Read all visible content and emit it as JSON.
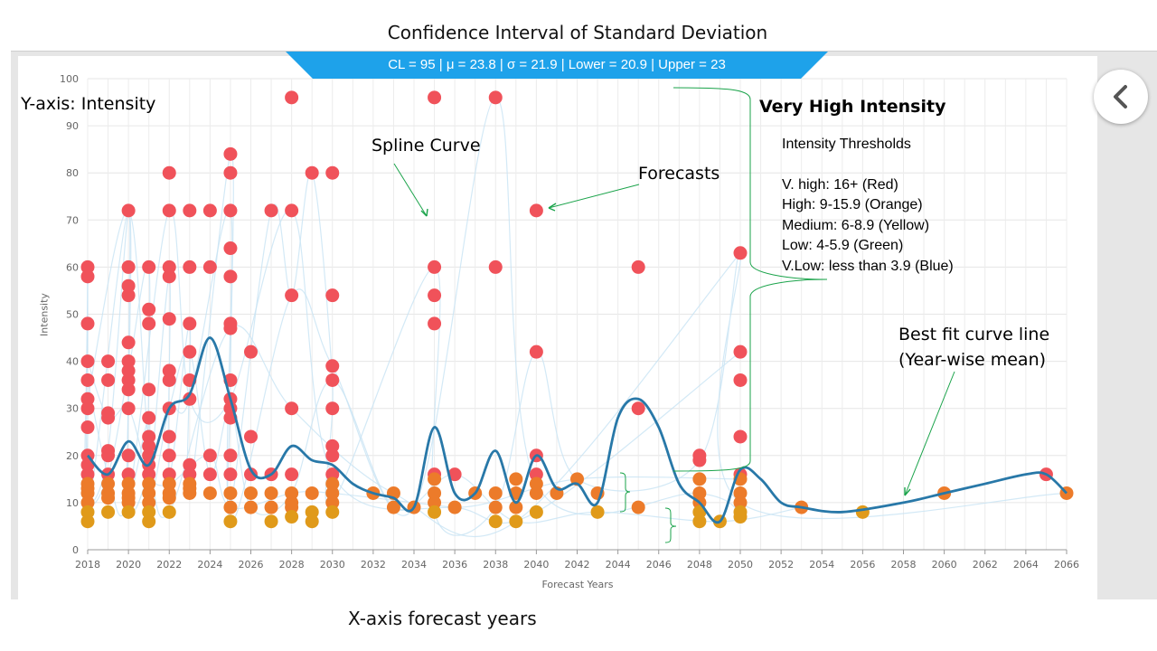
{
  "page": {
    "title": "Confidence Interval of Standard Deviation",
    "stats_banner": "CL = 95 | μ = 23.8 | σ = 21.9 | Lower = 20.9 | Upper = 23",
    "bottom_label": "X-axis forecast years"
  },
  "colors": {
    "banner": "#1ea2ea",
    "very_high": "#f0525a",
    "high": "#ec7b2a",
    "medium": "#e09a1a",
    "best_fit": "#2878a8",
    "spline": "#c8e4f4",
    "annotation_arrow": "#1aa34a"
  },
  "annotations": {
    "y_axis": "Y-axis: Intensity",
    "spline": "Spline Curve",
    "forecasts": "Forecasts",
    "very_high": "Very High Intensity",
    "thresholds_title": "Intensity Thresholds",
    "thresholds": [
      "V. high:  16+ (Red)",
      "High:  9-15.9 (Orange)",
      "Medium: 6-8.9 (Yellow)",
      "Low: 4-5.9 (Green)",
      "V.Low: less than 3.9 (Blue)"
    ],
    "best_fit_line1": "Best fit curve line",
    "best_fit_line2": "(Year-wise mean)"
  },
  "side_button": {
    "icon": "chevron-left-icon"
  },
  "chart_data": {
    "type": "scatter",
    "xlabel": "Forecast Years",
    "ylabel": "Intensity",
    "xlim": [
      2018,
      2066
    ],
    "ylim": [
      0,
      100
    ],
    "xticks": [
      "2018",
      "2020",
      "2022",
      "2024",
      "2026",
      "2028",
      "2030",
      "2032",
      "2034",
      "2036",
      "2038",
      "2040",
      "2042",
      "2044",
      "2046",
      "2048",
      "2050",
      "2052",
      "2054",
      "2056",
      "2058",
      "2060",
      "2062",
      "2064",
      "2066"
    ],
    "yticks": [
      "0",
      "10",
      "20",
      "30",
      "40",
      "50",
      "60",
      "70",
      "80",
      "90",
      "100"
    ],
    "grid": true,
    "points": [
      [
        2018,
        60
      ],
      [
        2018,
        58
      ],
      [
        2018,
        48
      ],
      [
        2018,
        40
      ],
      [
        2018,
        36
      ],
      [
        2018,
        32
      ],
      [
        2018,
        30
      ],
      [
        2018,
        26
      ],
      [
        2018,
        20
      ],
      [
        2018,
        18
      ],
      [
        2018,
        16
      ],
      [
        2018,
        14
      ],
      [
        2018,
        13
      ],
      [
        2018,
        12
      ],
      [
        2018,
        10
      ],
      [
        2018,
        8
      ],
      [
        2018,
        6
      ],
      [
        2019,
        40
      ],
      [
        2019,
        36
      ],
      [
        2019,
        29
      ],
      [
        2019,
        28
      ],
      [
        2019,
        21
      ],
      [
        2019,
        20
      ],
      [
        2019,
        16
      ],
      [
        2019,
        14
      ],
      [
        2019,
        12
      ],
      [
        2019,
        11
      ],
      [
        2019,
        8
      ],
      [
        2020,
        72
      ],
      [
        2020,
        60
      ],
      [
        2020,
        56
      ],
      [
        2020,
        54
      ],
      [
        2020,
        44
      ],
      [
        2020,
        40
      ],
      [
        2020,
        38
      ],
      [
        2020,
        36
      ],
      [
        2020,
        34
      ],
      [
        2020,
        30
      ],
      [
        2020,
        20
      ],
      [
        2020,
        16
      ],
      [
        2020,
        14
      ],
      [
        2020,
        12
      ],
      [
        2020,
        11
      ],
      [
        2020,
        10
      ],
      [
        2020,
        8
      ],
      [
        2021,
        60
      ],
      [
        2021,
        51
      ],
      [
        2021,
        48
      ],
      [
        2021,
        34
      ],
      [
        2021,
        28
      ],
      [
        2021,
        24
      ],
      [
        2021,
        22
      ],
      [
        2021,
        20
      ],
      [
        2021,
        18
      ],
      [
        2021,
        16
      ],
      [
        2021,
        14
      ],
      [
        2021,
        12
      ],
      [
        2021,
        10
      ],
      [
        2021,
        8
      ],
      [
        2021,
        6
      ],
      [
        2022,
        80
      ],
      [
        2022,
        72
      ],
      [
        2022,
        60
      ],
      [
        2022,
        58
      ],
      [
        2022,
        49
      ],
      [
        2022,
        38
      ],
      [
        2022,
        36
      ],
      [
        2022,
        30
      ],
      [
        2022,
        24
      ],
      [
        2022,
        20
      ],
      [
        2022,
        16
      ],
      [
        2022,
        14
      ],
      [
        2022,
        12
      ],
      [
        2022,
        11
      ],
      [
        2022,
        8
      ],
      [
        2023,
        72
      ],
      [
        2023,
        60
      ],
      [
        2023,
        48
      ],
      [
        2023,
        42
      ],
      [
        2023,
        36
      ],
      [
        2023,
        32
      ],
      [
        2023,
        18
      ],
      [
        2023,
        16
      ],
      [
        2023,
        14
      ],
      [
        2023,
        12
      ],
      [
        2023,
        13
      ],
      [
        2024,
        72
      ],
      [
        2024,
        60
      ],
      [
        2024,
        20
      ],
      [
        2024,
        16
      ],
      [
        2024,
        12
      ],
      [
        2025,
        84
      ],
      [
        2025,
        80
      ],
      [
        2025,
        72
      ],
      [
        2025,
        64
      ],
      [
        2025,
        58
      ],
      [
        2025,
        48
      ],
      [
        2025,
        47
      ],
      [
        2025,
        36
      ],
      [
        2025,
        32
      ],
      [
        2025,
        30
      ],
      [
        2025,
        28
      ],
      [
        2025,
        20
      ],
      [
        2025,
        16
      ],
      [
        2025,
        12
      ],
      [
        2025,
        9
      ],
      [
        2025,
        6
      ],
      [
        2026,
        42
      ],
      [
        2026,
        24
      ],
      [
        2026,
        16
      ],
      [
        2026,
        12
      ],
      [
        2026,
        9
      ],
      [
        2027,
        72
      ],
      [
        2027,
        16
      ],
      [
        2027,
        12
      ],
      [
        2027,
        9
      ],
      [
        2027,
        6
      ],
      [
        2028,
        96
      ],
      [
        2028,
        72
      ],
      [
        2028,
        54
      ],
      [
        2028,
        30
      ],
      [
        2028,
        16
      ],
      [
        2028,
        12
      ],
      [
        2028,
        10
      ],
      [
        2028,
        9
      ],
      [
        2028,
        7
      ],
      [
        2029,
        80
      ],
      [
        2029,
        12
      ],
      [
        2029,
        8
      ],
      [
        2029,
        6
      ],
      [
        2030,
        80
      ],
      [
        2030,
        54
      ],
      [
        2030,
        39
      ],
      [
        2030,
        36
      ],
      [
        2030,
        30
      ],
      [
        2030,
        22
      ],
      [
        2030,
        20
      ],
      [
        2030,
        16
      ],
      [
        2030,
        14
      ],
      [
        2030,
        12
      ],
      [
        2030,
        10
      ],
      [
        2030,
        8
      ],
      [
        2032,
        12
      ],
      [
        2033,
        12
      ],
      [
        2033,
        9
      ],
      [
        2034,
        9
      ],
      [
        2035,
        96
      ],
      [
        2035,
        60
      ],
      [
        2035,
        54
      ],
      [
        2035,
        48
      ],
      [
        2035,
        16
      ],
      [
        2035,
        15
      ],
      [
        2035,
        12
      ],
      [
        2035,
        10
      ],
      [
        2035,
        8
      ],
      [
        2036,
        16
      ],
      [
        2036,
        9
      ],
      [
        2037,
        12
      ],
      [
        2038,
        96
      ],
      [
        2038,
        60
      ],
      [
        2038,
        12
      ],
      [
        2038,
        9
      ],
      [
        2038,
        6
      ],
      [
        2039,
        15
      ],
      [
        2039,
        12
      ],
      [
        2039,
        9
      ],
      [
        2039,
        6
      ],
      [
        2040,
        72
      ],
      [
        2040,
        42
      ],
      [
        2040,
        20
      ],
      [
        2040,
        16
      ],
      [
        2040,
        14
      ],
      [
        2040,
        12
      ],
      [
        2040,
        8
      ],
      [
        2041,
        12
      ],
      [
        2042,
        15
      ],
      [
        2043,
        12
      ],
      [
        2043,
        8
      ],
      [
        2045,
        60
      ],
      [
        2045,
        30
      ],
      [
        2045,
        9
      ],
      [
        2048,
        20
      ],
      [
        2048,
        19
      ],
      [
        2048,
        15
      ],
      [
        2048,
        12
      ],
      [
        2048,
        10
      ],
      [
        2048,
        8
      ],
      [
        2048,
        6
      ],
      [
        2049,
        6
      ],
      [
        2050,
        63
      ],
      [
        2050,
        42
      ],
      [
        2050,
        36
      ],
      [
        2050,
        24
      ],
      [
        2050,
        16
      ],
      [
        2050,
        15
      ],
      [
        2050,
        12
      ],
      [
        2050,
        10
      ],
      [
        2050,
        8
      ],
      [
        2050,
        7
      ],
      [
        2053,
        9
      ],
      [
        2056,
        8
      ],
      [
        2060,
        12
      ],
      [
        2065,
        16
      ],
      [
        2066,
        12
      ]
    ],
    "best_fit": [
      [
        2018,
        20
      ],
      [
        2019,
        16
      ],
      [
        2020,
        23
      ],
      [
        2021,
        18
      ],
      [
        2022,
        30
      ],
      [
        2023,
        33
      ],
      [
        2024,
        45
      ],
      [
        2025,
        32
      ],
      [
        2026,
        17
      ],
      [
        2027,
        16
      ],
      [
        2028,
        22
      ],
      [
        2029,
        19
      ],
      [
        2030,
        18
      ],
      [
        2031,
        14
      ],
      [
        2032,
        12
      ],
      [
        2033,
        11
      ],
      [
        2034,
        9
      ],
      [
        2035,
        26
      ],
      [
        2036,
        12
      ],
      [
        2037,
        12
      ],
      [
        2038,
        21
      ],
      [
        2039,
        10
      ],
      [
        2040,
        20
      ],
      [
        2041,
        13
      ],
      [
        2042,
        14
      ],
      [
        2043,
        10
      ],
      [
        2044,
        28
      ],
      [
        2045,
        32
      ],
      [
        2046,
        26
      ],
      [
        2047,
        14
      ],
      [
        2048,
        10
      ],
      [
        2049,
        6
      ],
      [
        2050,
        17
      ],
      [
        2051,
        15
      ],
      [
        2052,
        10
      ],
      [
        2053,
        9
      ],
      [
        2055,
        8
      ],
      [
        2058,
        10
      ],
      [
        2060,
        12
      ],
      [
        2062,
        14
      ],
      [
        2064,
        16
      ],
      [
        2065,
        16
      ],
      [
        2066,
        12
      ]
    ]
  }
}
